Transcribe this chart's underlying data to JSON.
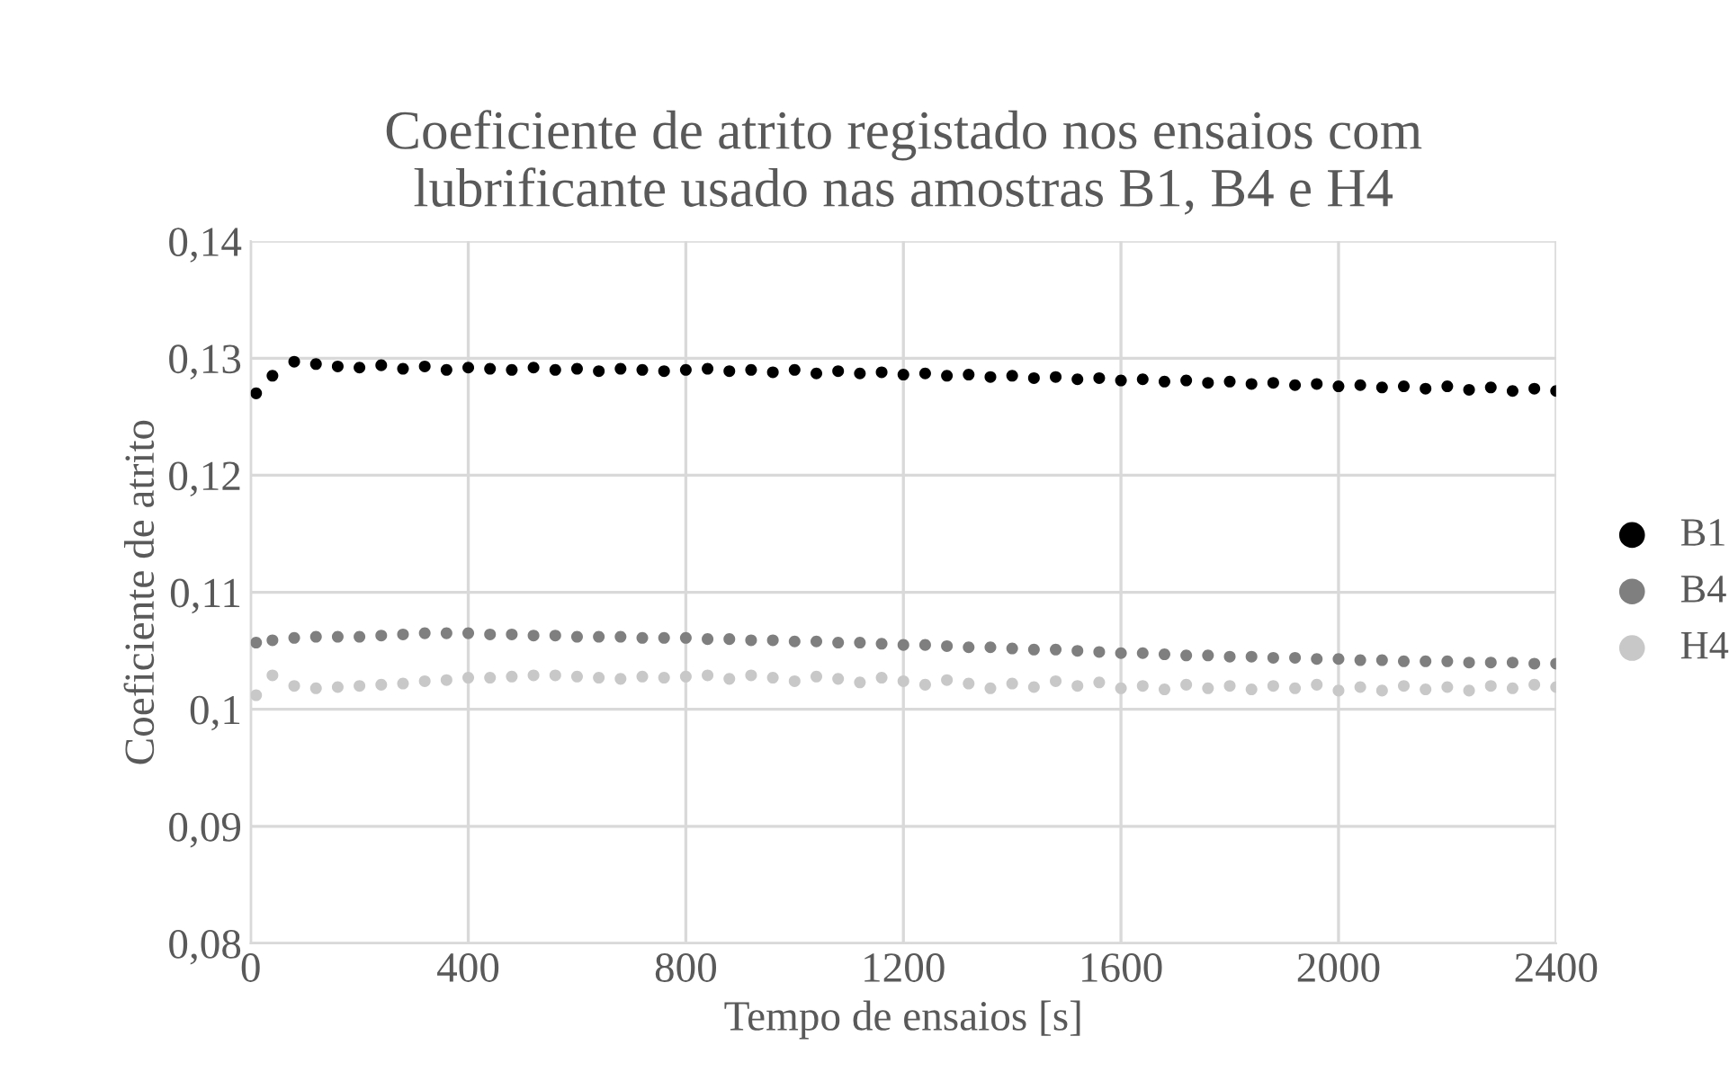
{
  "chart_data": {
    "type": "scatter",
    "title": "Coeficiente de atrito registado nos ensaios com\nlubrificante usado nas amostras B1, B4 e H4",
    "xlabel": "Tempo de ensaios [s]",
    "ylabel": "Coeficiente de atrito",
    "x": [
      10,
      40,
      80,
      120,
      160,
      200,
      240,
      280,
      320,
      360,
      400,
      440,
      480,
      520,
      560,
      600,
      640,
      680,
      720,
      760,
      800,
      840,
      880,
      920,
      960,
      1000,
      1040,
      1080,
      1120,
      1160,
      1200,
      1240,
      1280,
      1320,
      1360,
      1400,
      1440,
      1480,
      1520,
      1560,
      1600,
      1640,
      1680,
      1720,
      1760,
      1800,
      1840,
      1880,
      1920,
      1960,
      2000,
      2040,
      2080,
      2120,
      2160,
      2200,
      2240,
      2280,
      2320,
      2360,
      2400
    ],
    "series": [
      {
        "name": "B1",
        "color": "#000000",
        "values": [
          0.127,
          0.1285,
          0.1297,
          0.1295,
          0.1293,
          0.1292,
          0.1294,
          0.1291,
          0.1293,
          0.129,
          0.1292,
          0.1291,
          0.129,
          0.1292,
          0.129,
          0.1291,
          0.1289,
          0.1291,
          0.129,
          0.1289,
          0.129,
          0.1291,
          0.1289,
          0.129,
          0.1288,
          0.129,
          0.1287,
          0.1289,
          0.1287,
          0.1288,
          0.1286,
          0.1287,
          0.1285,
          0.1286,
          0.1284,
          0.1285,
          0.1283,
          0.1284,
          0.1282,
          0.1283,
          0.1281,
          0.1282,
          0.128,
          0.1281,
          0.1279,
          0.128,
          0.1278,
          0.1279,
          0.1277,
          0.1278,
          0.1276,
          0.1277,
          0.1275,
          0.1276,
          0.1274,
          0.1276,
          0.1273,
          0.1275,
          0.1272,
          0.1274,
          0.1272
        ]
      },
      {
        "name": "B4",
        "color": "#7f7f7f",
        "values": [
          0.1057,
          0.1059,
          0.1061,
          0.1062,
          0.1062,
          0.1062,
          0.1063,
          0.1064,
          0.1065,
          0.1065,
          0.1065,
          0.1064,
          0.1064,
          0.1063,
          0.1063,
          0.1062,
          0.1062,
          0.1062,
          0.1061,
          0.1061,
          0.1061,
          0.106,
          0.106,
          0.1059,
          0.1059,
          0.1058,
          0.1058,
          0.1057,
          0.1057,
          0.1056,
          0.1055,
          0.1055,
          0.1054,
          0.1053,
          0.1053,
          0.1052,
          0.1051,
          0.1051,
          0.105,
          0.1049,
          0.1048,
          0.1048,
          0.1047,
          0.1046,
          0.1046,
          0.1045,
          0.1045,
          0.1044,
          0.1044,
          0.1043,
          0.1043,
          0.1042,
          0.1042,
          0.1041,
          0.1041,
          0.1041,
          0.104,
          0.104,
          0.104,
          0.1039,
          0.1039
        ]
      },
      {
        "name": "H4",
        "color": "#c8c8c8",
        "values": [
          0.1012,
          0.1029,
          0.102,
          0.1018,
          0.1019,
          0.102,
          0.1021,
          0.1022,
          0.1024,
          0.1025,
          0.1027,
          0.1027,
          0.1028,
          0.1029,
          0.1029,
          0.1028,
          0.1027,
          0.1026,
          0.1028,
          0.1027,
          0.1028,
          0.1029,
          0.1026,
          0.1029,
          0.1027,
          0.1024,
          0.1028,
          0.1026,
          0.1023,
          0.1027,
          0.1024,
          0.1021,
          0.1025,
          0.1022,
          0.1018,
          0.1022,
          0.1019,
          0.1024,
          0.102,
          0.1023,
          0.1018,
          0.102,
          0.1017,
          0.1021,
          0.1018,
          0.102,
          0.1017,
          0.102,
          0.1018,
          0.1021,
          0.1016,
          0.1019,
          0.1016,
          0.102,
          0.1017,
          0.1019,
          0.1016,
          0.102,
          0.1018,
          0.1021,
          0.1019
        ]
      }
    ],
    "xlim": [
      0,
      2400
    ],
    "xticks": [
      0,
      400,
      800,
      1200,
      1600,
      2000,
      2400
    ],
    "ylim": [
      0.08,
      0.14
    ],
    "yticks": [
      {
        "value": 0.08,
        "label": "0,08"
      },
      {
        "value": 0.09,
        "label": "0,09"
      },
      {
        "value": 0.1,
        "label": "0,1"
      },
      {
        "value": 0.11,
        "label": "0,11"
      },
      {
        "value": 0.12,
        "label": "0,12"
      },
      {
        "value": 0.13,
        "label": "0,13"
      },
      {
        "value": 0.14,
        "label": "0,14"
      }
    ],
    "grid": true,
    "legend": "right",
    "marker": "circle"
  }
}
